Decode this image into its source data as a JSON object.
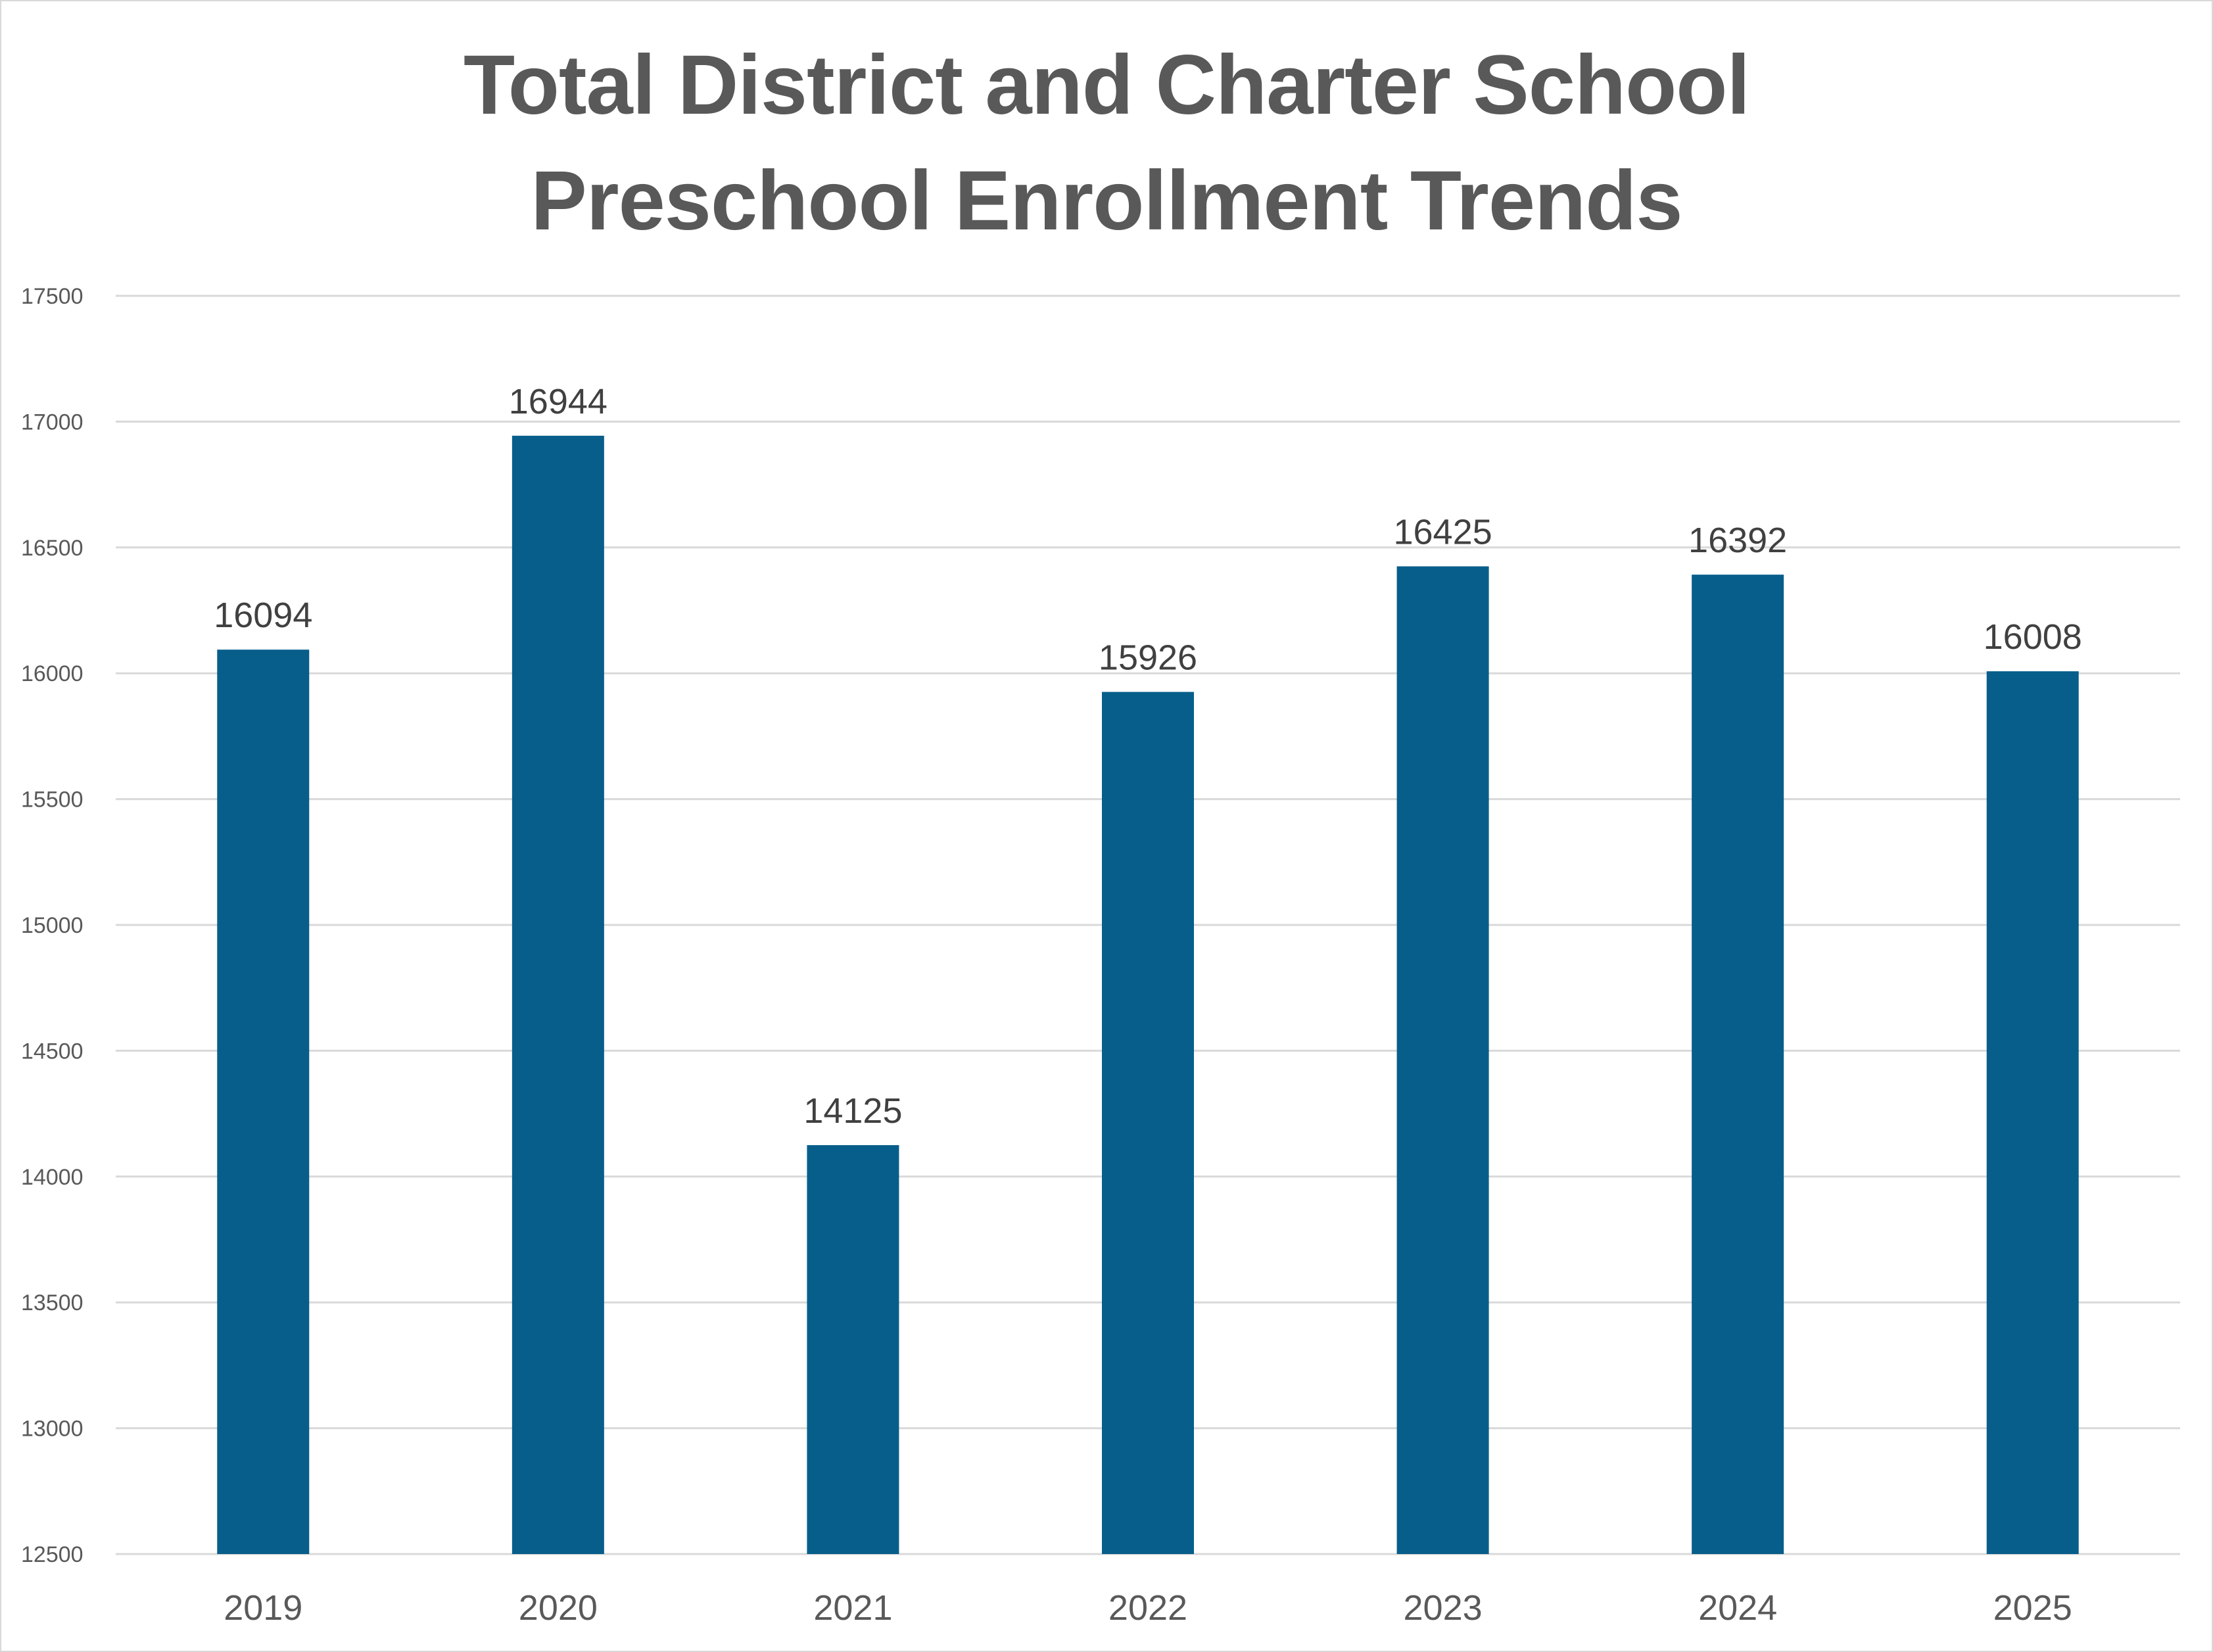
{
  "chart_data": {
    "type": "bar",
    "title_lines": [
      "Total District and Charter School",
      "Preschool Enrollment Trends"
    ],
    "xlabel": "",
    "ylabel": "",
    "categories": [
      "2019",
      "2020",
      "2021",
      "2022",
      "2023",
      "2024",
      "2025"
    ],
    "values": [
      16094,
      16944,
      14125,
      15926,
      16425,
      16392,
      16008
    ],
    "data_labels": [
      "16094",
      "16944",
      "14125",
      "15926",
      "16425",
      "16392",
      "16008"
    ],
    "ylim": [
      12500,
      17500
    ],
    "yticks": [
      "12500",
      "13000",
      "13500",
      "14000",
      "14500",
      "15000",
      "15500",
      "16000",
      "16500",
      "17000",
      "17500"
    ],
    "grid": true,
    "legend": "none",
    "bar_color": "#075E8A",
    "grid_color": "#D9D9D9"
  }
}
